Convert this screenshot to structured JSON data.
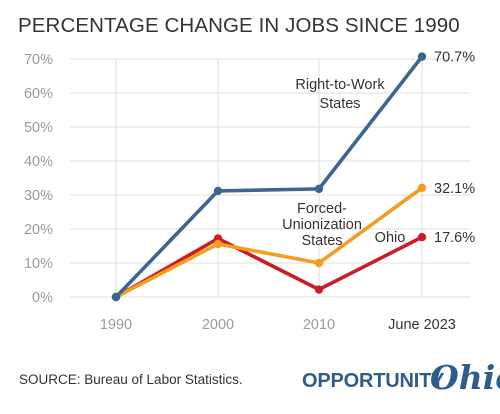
{
  "title": "PERCENTAGE CHANGE IN JOBS SINCE 1990",
  "source": "SOURCE: Bureau of Labor Statistics.",
  "logo": {
    "word": "OPPORTUNITY",
    "script": "Ohio"
  },
  "colors": {
    "rtw": "#3d6592",
    "forced": "#f49d20",
    "ohio": "#cb1e24",
    "grid": "#dcdcdc",
    "axis": "#9a9a9a",
    "text": "#333333"
  },
  "chart_data": {
    "type": "line",
    "title": "PERCENTAGE CHANGE IN JOBS SINCE 1990",
    "categories": [
      "1990",
      "2000",
      "2010",
      "June 2023"
    ],
    "ylim": [
      0,
      70
    ],
    "yticks": [
      0,
      10,
      20,
      30,
      40,
      50,
      60,
      70
    ],
    "ytick_labels": [
      "0%",
      "10%",
      "20%",
      "30%",
      "40%",
      "50%",
      "60%",
      "70%"
    ],
    "grid": true,
    "legend": "inline labels",
    "series": [
      {
        "key": "rtw",
        "label_lines": [
          "Right-to-Work",
          "States"
        ],
        "values": [
          0,
          31.2,
          31.8,
          70.7
        ],
        "end_label": "70.7%"
      },
      {
        "key": "forced",
        "label_lines": [
          "Forced-",
          "Unionization",
          "States"
        ],
        "values": [
          0,
          15.6,
          10.0,
          32.1
        ],
        "end_label": "32.1%"
      },
      {
        "key": "ohio",
        "label_lines": [
          "Ohio"
        ],
        "values": [
          0,
          17.2,
          2.2,
          17.6
        ],
        "end_label": "17.6%"
      }
    ]
  }
}
